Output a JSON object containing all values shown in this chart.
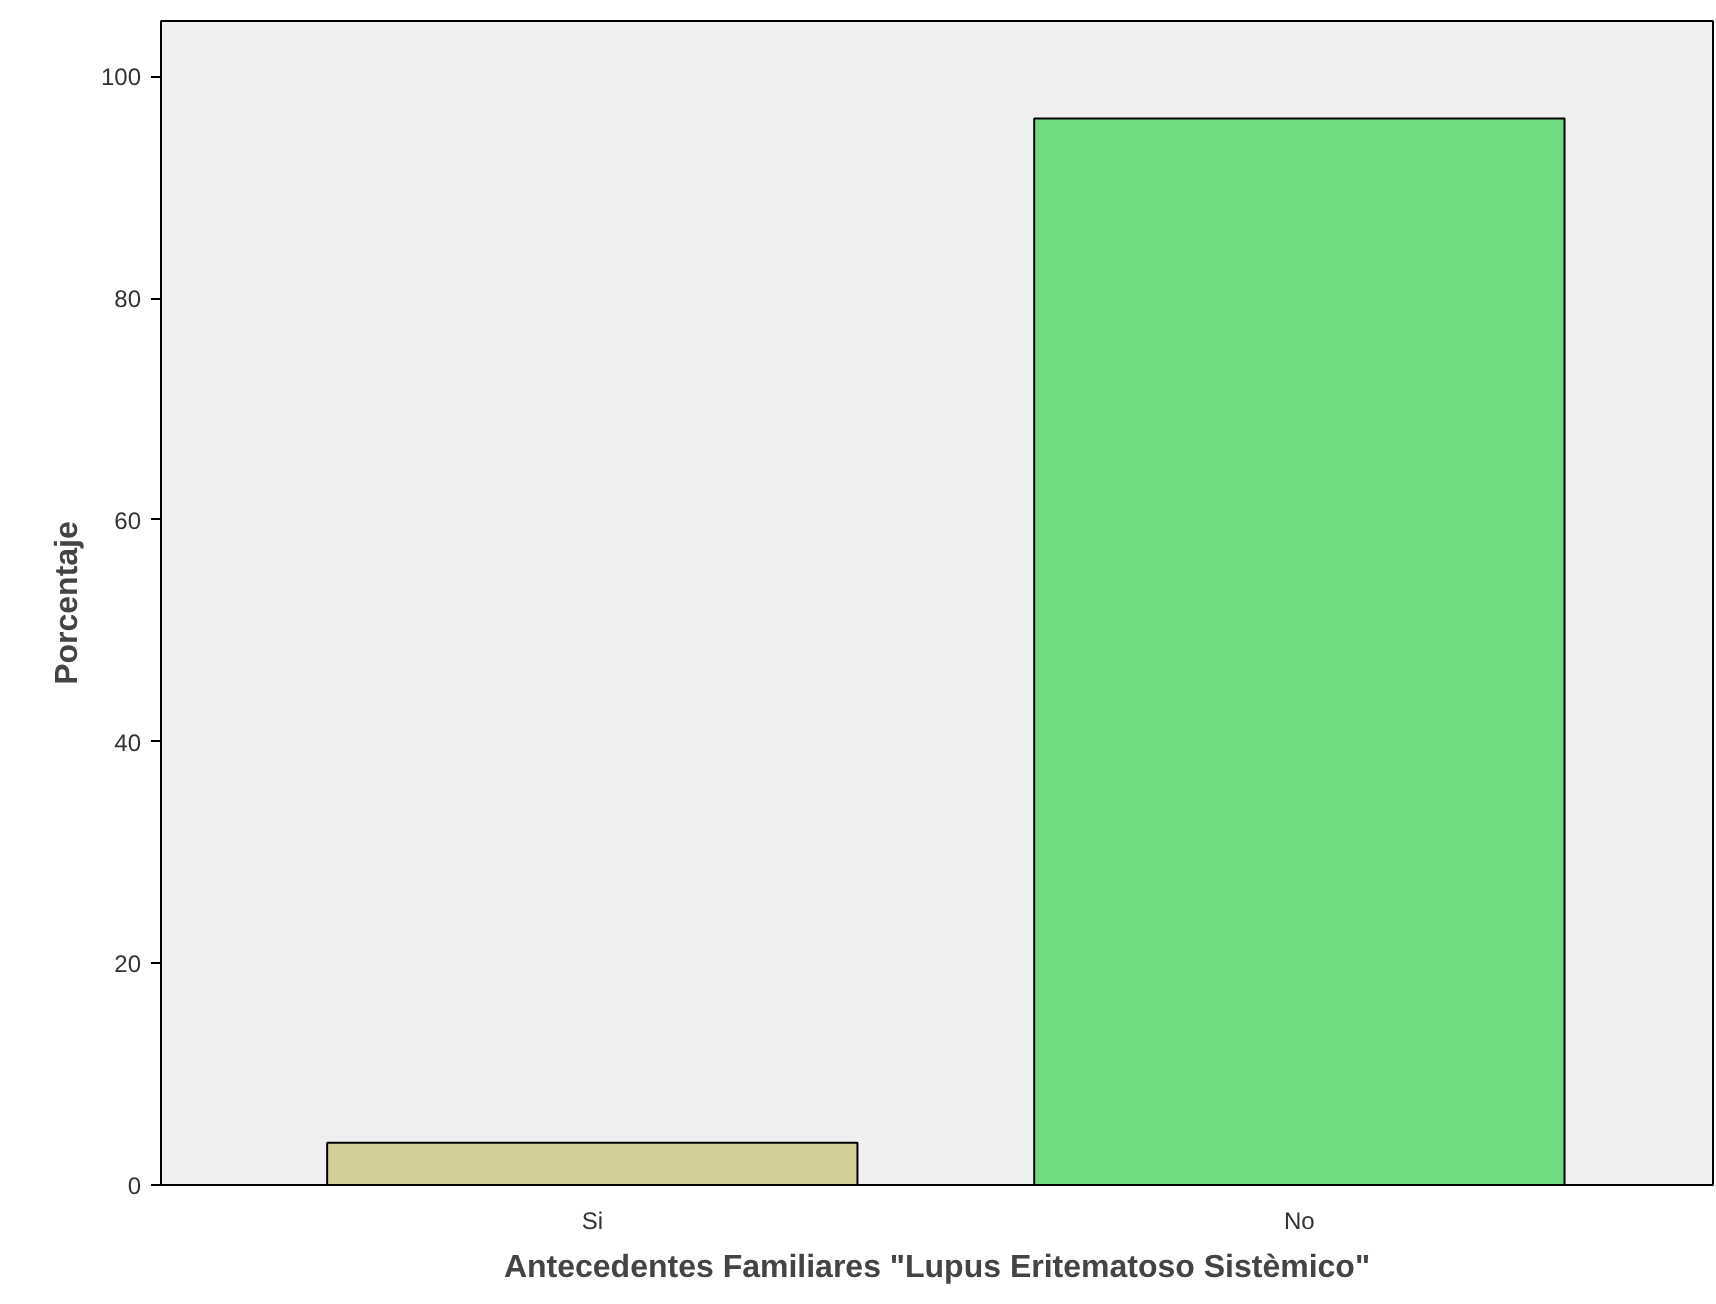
{
  "chart_data": {
    "type": "bar",
    "xlabel": "Antecedentes Familiares \"Lupus Eritematoso Sistèmico\"",
    "ylabel": "Porcentaje",
    "categories": [
      "Si",
      "No"
    ],
    "values": [
      3.8,
      96.2
    ],
    "colors": [
      "#d3ce97",
      "#6fdc82"
    ],
    "ylim": [
      0,
      105
    ],
    "yticks": [
      0,
      20,
      40,
      60,
      80,
      100
    ],
    "grid": false
  }
}
